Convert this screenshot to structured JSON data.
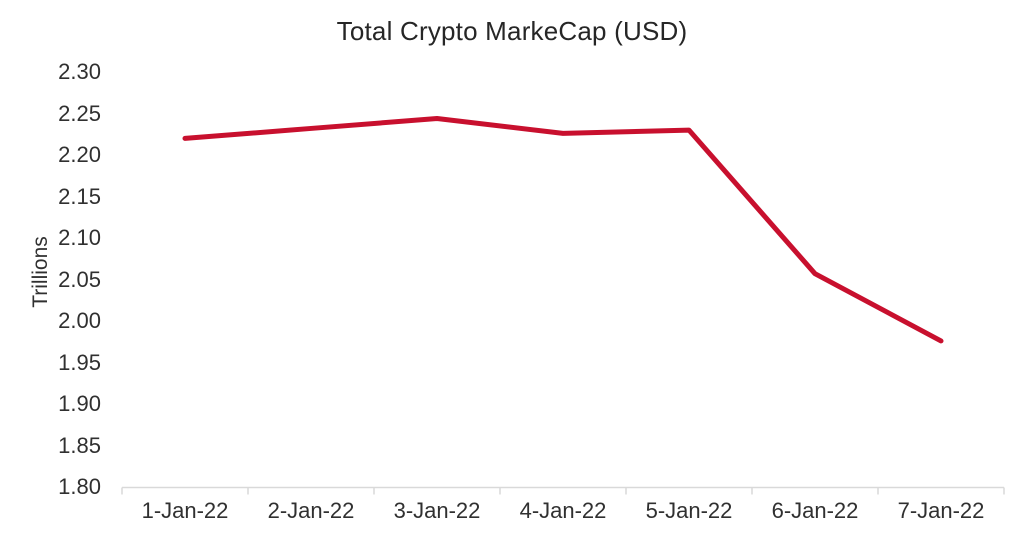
{
  "chart_data": {
    "type": "line",
    "title": "Total Crypto MarkeCap (USD)",
    "ylabel": "Trillions",
    "xlabel": "",
    "categories": [
      "1-Jan-22",
      "2-Jan-22",
      "3-Jan-22",
      "4-Jan-22",
      "5-Jan-22",
      "6-Jan-22",
      "7-Jan-22"
    ],
    "values": [
      2.22,
      2.232,
      2.244,
      2.226,
      2.23,
      2.057,
      1.976
    ],
    "ylim": [
      1.8,
      2.3
    ],
    "ytick_step": 0.05,
    "ytick_labels": [
      "2.30",
      "2.25",
      "2.20",
      "2.15",
      "2.10",
      "2.05",
      "2.00",
      "1.95",
      "1.90",
      "1.85",
      "1.80"
    ],
    "grid": false,
    "legend": "none",
    "colors": {
      "line": "#C8102E",
      "axis": "#D9D9D9",
      "title_text": "#262626",
      "tick_text": "#303030"
    }
  }
}
